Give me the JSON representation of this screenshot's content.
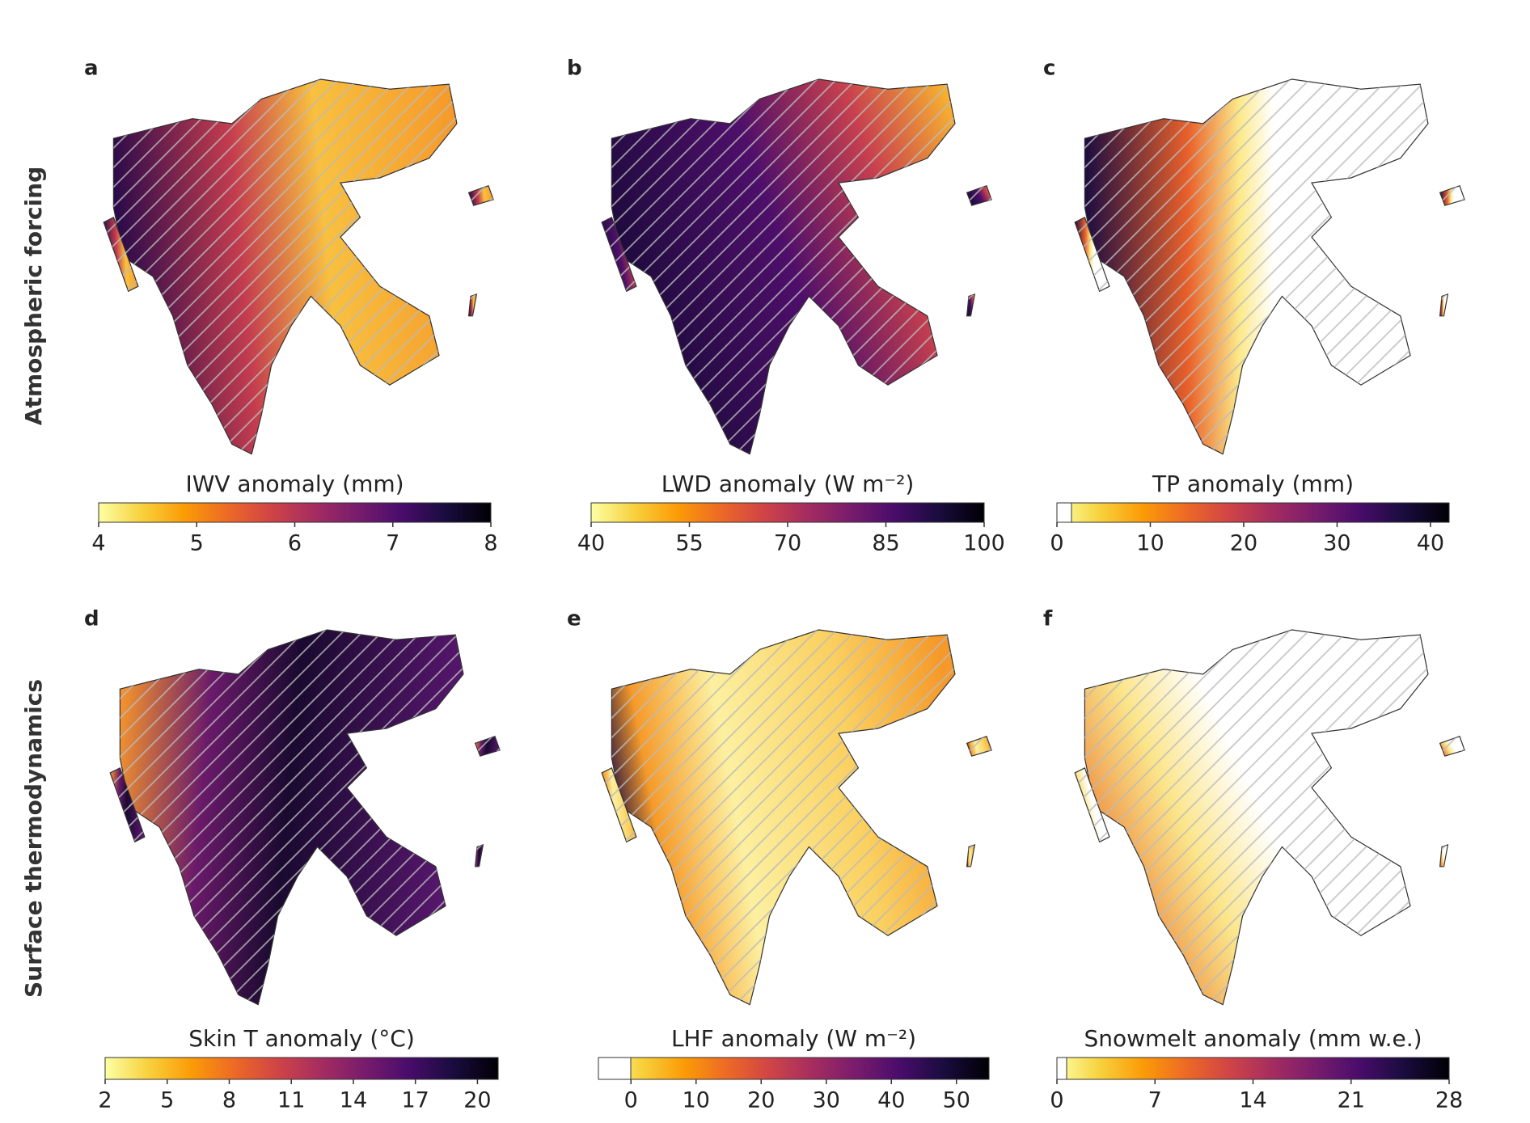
{
  "row_labels": [
    "Atmospheric forcing",
    "Surface thermodynamics"
  ],
  "panels": [
    {
      "letter": "a",
      "colorbar": {
        "label": "IWV anomaly (mm)",
        "lim": [
          4,
          8
        ],
        "ticks": [
          4,
          5,
          6,
          7,
          8
        ]
      }
    },
    {
      "letter": "b",
      "colorbar": {
        "label": "LWD anomaly (W m⁻²)",
        "lim": [
          40,
          100
        ],
        "ticks": [
          40,
          55,
          70,
          85,
          100
        ]
      }
    },
    {
      "letter": "c",
      "colorbar": {
        "label": "TP anomaly (mm)",
        "lim": [
          0,
          42
        ],
        "ticks": [
          0,
          10,
          20,
          30,
          40
        ]
      }
    },
    {
      "letter": "d",
      "colorbar": {
        "label": "Skin T anomaly (°C)",
        "lim": [
          2,
          21
        ],
        "ticks": [
          2,
          5,
          8,
          11,
          14,
          17,
          20
        ]
      }
    },
    {
      "letter": "e",
      "colorbar": {
        "label": "LHF anomaly (W m⁻²)",
        "lim": [
          -5,
          55
        ],
        "ticks": [
          0,
          10,
          20,
          30,
          40,
          50
        ]
      }
    },
    {
      "letter": "f",
      "colorbar": {
        "label": "Snowmelt anomaly (mm w.e.)",
        "lim": [
          0,
          28
        ],
        "ticks": [
          0,
          7,
          14,
          21,
          28
        ]
      }
    }
  ]
}
